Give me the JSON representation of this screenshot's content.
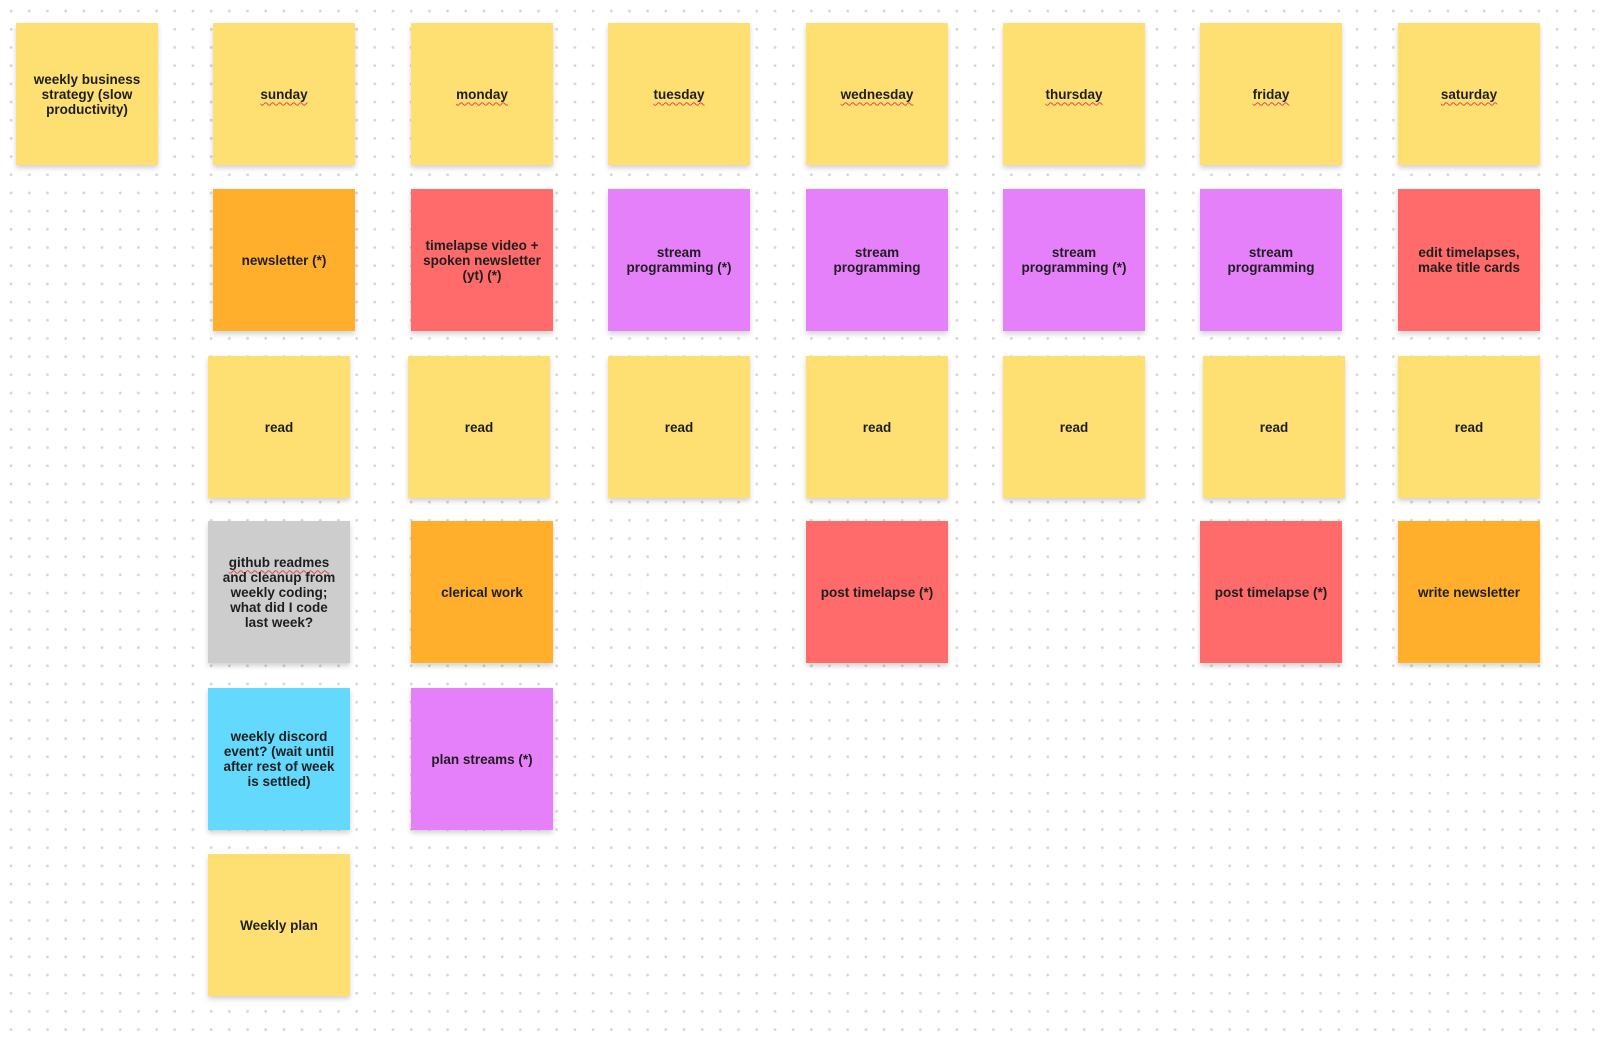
{
  "colors": {
    "yellow": "#FDDF72",
    "orange": "#FFAF2B",
    "red": "#FF6B6B",
    "purple": "#E680FA",
    "gray": "#CDCDCD",
    "blue": "#63DAFD"
  },
  "columns": [
    {
      "header": "weekly business strategy (slow productivity)",
      "header_spellcheck": false,
      "notes": []
    },
    {
      "header": "sunday",
      "header_spellcheck": true,
      "notes": [
        {
          "text": "newsletter (*)",
          "color": "orange"
        },
        {
          "text": "read",
          "color": "yellow"
        },
        {
          "text": "github readmes and cleanup from weekly coding; what did I code last week?",
          "color": "gray"
        },
        {
          "text": "weekly discord event? (wait until after rest of week is settled)",
          "color": "blue"
        },
        {
          "text": "Weekly plan",
          "color": "yellow"
        }
      ]
    },
    {
      "header": "monday",
      "header_spellcheck": true,
      "notes": [
        {
          "text": "timelapse video + spoken newsletter (yt) (*)",
          "color": "red"
        },
        {
          "text": "read",
          "color": "yellow"
        },
        {
          "text": "clerical work",
          "color": "orange"
        },
        {
          "text": "plan streams (*)",
          "color": "purple"
        }
      ]
    },
    {
      "header": "tuesday",
      "header_spellcheck": true,
      "notes": [
        {
          "text": "stream programming (*)",
          "color": "purple"
        },
        {
          "text": "read",
          "color": "yellow"
        }
      ]
    },
    {
      "header": "wednesday",
      "header_spellcheck": true,
      "notes": [
        {
          "text": "stream programming",
          "color": "purple"
        },
        {
          "text": "read",
          "color": "yellow"
        },
        {
          "text": "post timelapse (*)",
          "color": "red"
        }
      ]
    },
    {
      "header": "thursday",
      "header_spellcheck": true,
      "notes": [
        {
          "text": "stream programming (*)",
          "color": "purple"
        },
        {
          "text": "read",
          "color": "yellow"
        }
      ]
    },
    {
      "header": "friday",
      "header_spellcheck": true,
      "notes": [
        {
          "text": "stream programming",
          "color": "purple"
        },
        {
          "text": "read",
          "color": "yellow"
        },
        {
          "text": "post timelapse (*)",
          "color": "red"
        }
      ]
    },
    {
      "header": "saturday",
      "header_spellcheck": true,
      "notes": [
        {
          "text": "edit timelapses, make title cards",
          "color": "red"
        },
        {
          "text": "read",
          "color": "yellow"
        },
        {
          "text": "write newsletter",
          "color": "orange"
        }
      ]
    }
  ]
}
